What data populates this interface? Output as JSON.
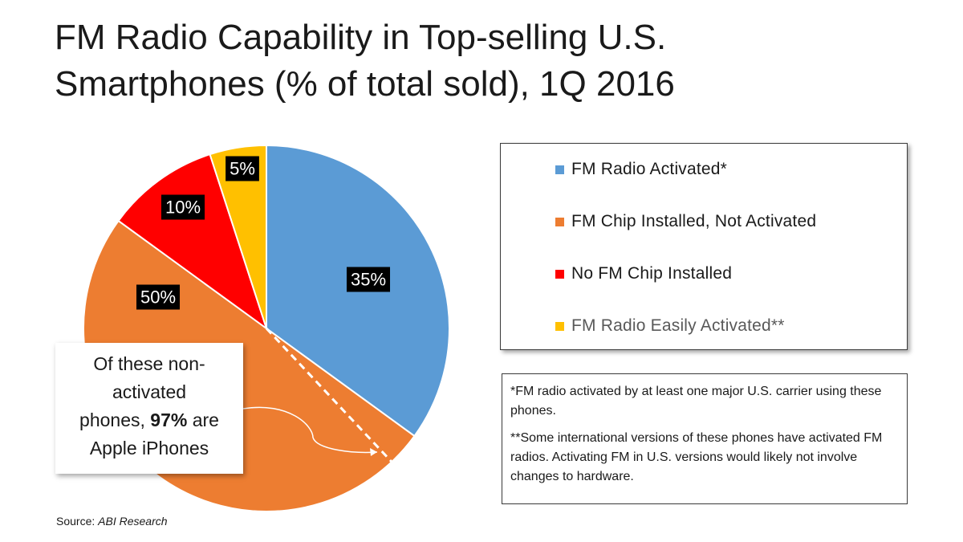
{
  "chart_data": {
    "type": "pie",
    "title": "FM Radio Capability in Top-selling U.S. Smartphones (% of total sold), 1Q 2016",
    "slices": [
      {
        "label": "FM Radio Activated*",
        "value": 35,
        "display": "35%",
        "color": "#5b9bd5"
      },
      {
        "label": "FM Chip Installed, Not Activated",
        "value": 50,
        "display": "50%",
        "color": "#ed7d31"
      },
      {
        "label": "No FM Chip Installed",
        "value": 10,
        "display": "10%",
        "color": "#ff0000"
      },
      {
        "label": "FM Radio Easily Activated**",
        "value": 5,
        "display": "5%",
        "color": "#ffc000"
      }
    ],
    "legend_position": "right"
  },
  "callout": {
    "line1": "Of these non-",
    "line2": "activated",
    "line3_pre": "phones, ",
    "line3_bold": "97%",
    "line3_post": " are",
    "line4": "Apple iPhones"
  },
  "notes": {
    "note1": "*FM radio activated by at least one major U.S. carrier using these phones.",
    "note2": "**Some international versions of these phones have activated FM radios. Activating FM in U.S. versions would likely not involve changes to hardware."
  },
  "source": {
    "prefix": "Source: ",
    "name": "ABI Research"
  }
}
